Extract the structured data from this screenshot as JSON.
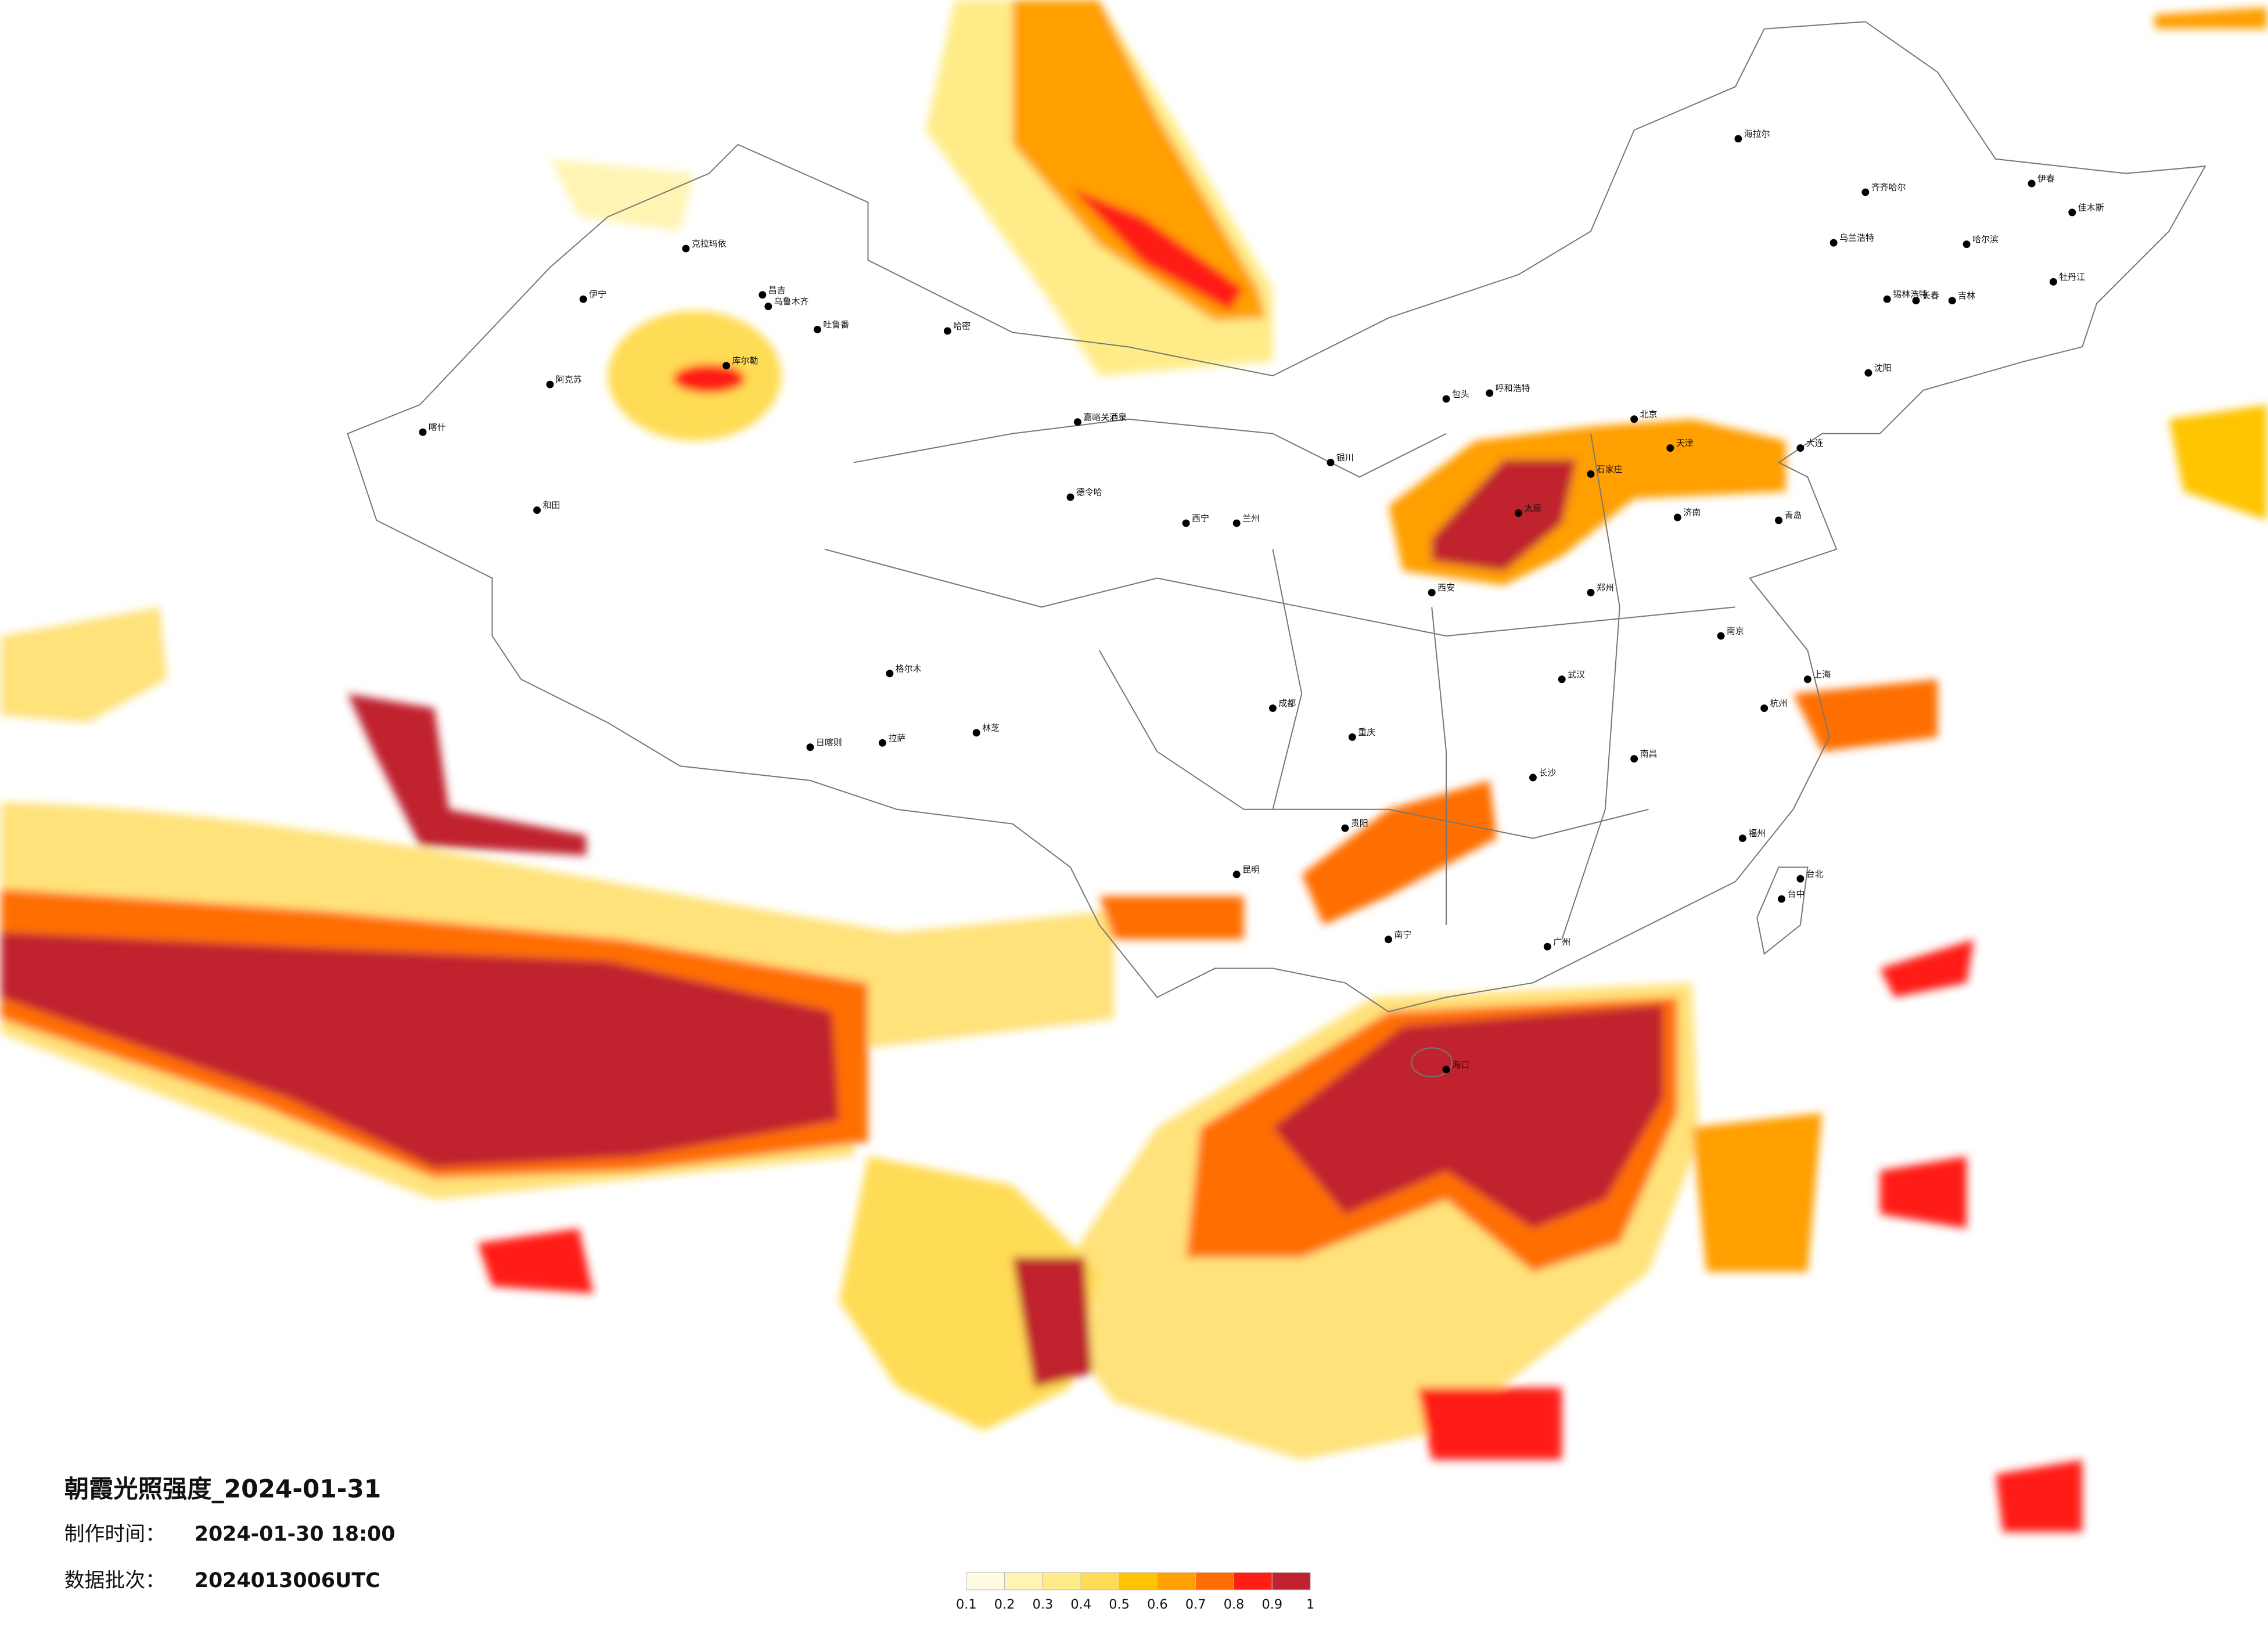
{
  "title": "朝霞光照强度_2024-01-31",
  "made_time": {
    "label": "制作时间：",
    "value": "2024-01-30 18:00"
  },
  "batch": {
    "label": "数据批次：",
    "value": "2024013006UTC"
  },
  "legend": {
    "ticks": [
      0.1,
      0.2,
      0.3,
      0.4,
      0.5,
      0.6,
      0.7,
      0.8,
      0.9,
      1
    ],
    "colors": [
      "#fffbe0",
      "#fff4b4",
      "#ffec88",
      "#ffdc55",
      "#ffc400",
      "#ff9f00",
      "#ff6e00",
      "#ff1f14",
      "#c0232f"
    ]
  },
  "cities": [
    "伊宁",
    "克拉玛依",
    "昌吉",
    "乌鲁木齐",
    "吐鲁番",
    "哈密",
    "阿克苏",
    "喀什",
    "和田",
    "库尔勒",
    "嘉峪关酒泉",
    "德令哈",
    "格尔木",
    "拉萨",
    "日喀则",
    "林芝",
    "海拉尔",
    "齐齐哈尔",
    "哈尔滨",
    "长春",
    "吉林",
    "沈阳",
    "大连",
    "呼和浩特",
    "包头",
    "北京",
    "天津",
    "石家庄",
    "太原",
    "济南",
    "青岛",
    "郑州",
    "西安",
    "兰州",
    "西宁",
    "银川",
    "成都",
    "重庆",
    "武汉",
    "南京",
    "上海",
    "杭州",
    "长沙",
    "南昌",
    "福州",
    "贵阳",
    "昆明",
    "南宁",
    "广州",
    "海口",
    "台北",
    "台中",
    "乌兰浩特",
    "伊春",
    "佳木斯",
    "牡丹江",
    "锡林浩特"
  ]
}
